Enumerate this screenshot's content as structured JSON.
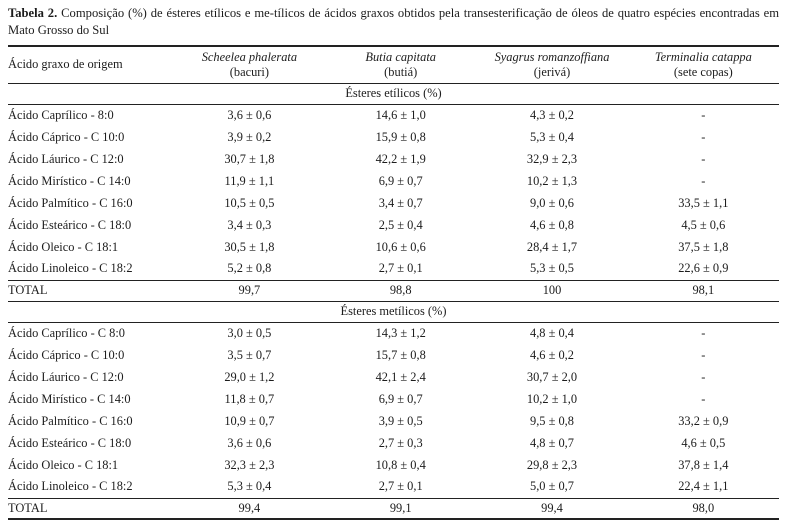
{
  "caption": {
    "label": "Tabela 2.",
    "text": "Composição (%) de ésteres etílicos e me-tílicos de ácidos graxos obtidos pela transesterificação de óleos de quatro espécies encontradas em Mato Grosso do Sul"
  },
  "table": {
    "row_header": "Ácido graxo de origem",
    "columns": [
      {
        "species": "Scheelea phalerata",
        "common": "(bacuri)"
      },
      {
        "species": "Butia capitata",
        "common": "(butiá)"
      },
      {
        "species": "Syagrus romanzoffiana",
        "common": "(jerivá)"
      },
      {
        "species": "Terminalia catappa",
        "common": "(sete copas)"
      }
    ],
    "sections": [
      {
        "header": "Ésteres etílicos (%)",
        "rows": [
          {
            "label": "Ácido Caprílico - 8:0",
            "values": [
              "3,6 ± 0,6",
              "14,6 ± 1,0",
              "4,3 ± 0,2",
              "-"
            ]
          },
          {
            "label": "Ácido Cáprico - C 10:0",
            "values": [
              "3,9 ± 0,2",
              "15,9 ± 0,8",
              "5,3 ± 0,4",
              "-"
            ]
          },
          {
            "label": "Ácido Láurico - C 12:0",
            "values": [
              "30,7 ± 1,8",
              "42,2 ± 1,9",
              "32,9 ± 2,3",
              "-"
            ]
          },
          {
            "label": "Ácido Mirístico - C 14:0",
            "values": [
              "11,9 ± 1,1",
              "6,9 ± 0,7",
              "10,2 ± 1,3",
              "-"
            ]
          },
          {
            "label": "Ácido Palmítico - C 16:0",
            "values": [
              "10,5 ± 0,5",
              "3,4 ± 0,7",
              "9,0 ± 0,6",
              "33,5 ± 1,1"
            ]
          },
          {
            "label": "Ácido Esteárico - C 18:0",
            "values": [
              "3,4 ± 0,3",
              "2,5 ± 0,4",
              "4,6 ± 0,8",
              "4,5 ± 0,6"
            ]
          },
          {
            "label": "Ácido Oleico - C 18:1",
            "values": [
              "30,5 ± 1,8",
              "10,6 ± 0,6",
              "28,4 ± 1,7",
              "37,5 ± 1,8"
            ]
          },
          {
            "label": "Ácido Linoleico - C 18:2",
            "values": [
              "5,2 ± 0,8",
              "2,7 ± 0,1",
              "5,3 ± 0,5",
              "22,6 ± 0,9"
            ]
          }
        ],
        "total": {
          "label": "TOTAL",
          "values": [
            "99,7",
            "98,8",
            "100",
            "98,1"
          ]
        }
      },
      {
        "header": "Ésteres metílicos (%)",
        "rows": [
          {
            "label": "Ácido Caprílico - C 8:0",
            "values": [
              "3,0 ± 0,5",
              "14,3 ± 1,2",
              "4,8 ± 0,4",
              "-"
            ]
          },
          {
            "label": "Ácido Cáprico - C 10:0",
            "values": [
              "3,5 ± 0,7",
              "15,7 ± 0,8",
              "4,6 ± 0,2",
              "-"
            ]
          },
          {
            "label": "Ácido Láurico - C 12:0",
            "values": [
              "29,0 ± 1,2",
              "42,1 ± 2,4",
              "30,7 ± 2,0",
              "-"
            ]
          },
          {
            "label": "Ácido Mirístico - C 14:0",
            "values": [
              "11,8 ± 0,7",
              "6,9 ± 0,7",
              "10,2 ± 1,0",
              "-"
            ]
          },
          {
            "label": "Ácido Palmítico - C 16:0",
            "values": [
              "10,9 ± 0,7",
              "3,9 ± 0,5",
              "9,5 ± 0,8",
              "33,2 ± 0,9"
            ]
          },
          {
            "label": "Ácido Esteárico - C 18:0",
            "values": [
              "3,6 ± 0,6",
              "2,7 ± 0,3",
              "4,8 ± 0,7",
              "4,6 ± 0,5"
            ]
          },
          {
            "label": "Ácido Oleico - C 18:1",
            "values": [
              "32,3 ± 2,3",
              "10,8 ± 0,4",
              "29,8 ± 2,3",
              "37,8 ± 1,4"
            ]
          },
          {
            "label": "Ácido Linoleico - C 18:2",
            "values": [
              "5,3 ± 0,4",
              "2,7 ± 0,1",
              "5,0 ± 0,7",
              "22,4 ± 1,1"
            ]
          }
        ],
        "total": {
          "label": "TOTAL",
          "values": [
            "99,4",
            "99,1",
            "99,4",
            "98,0"
          ]
        }
      }
    ]
  }
}
